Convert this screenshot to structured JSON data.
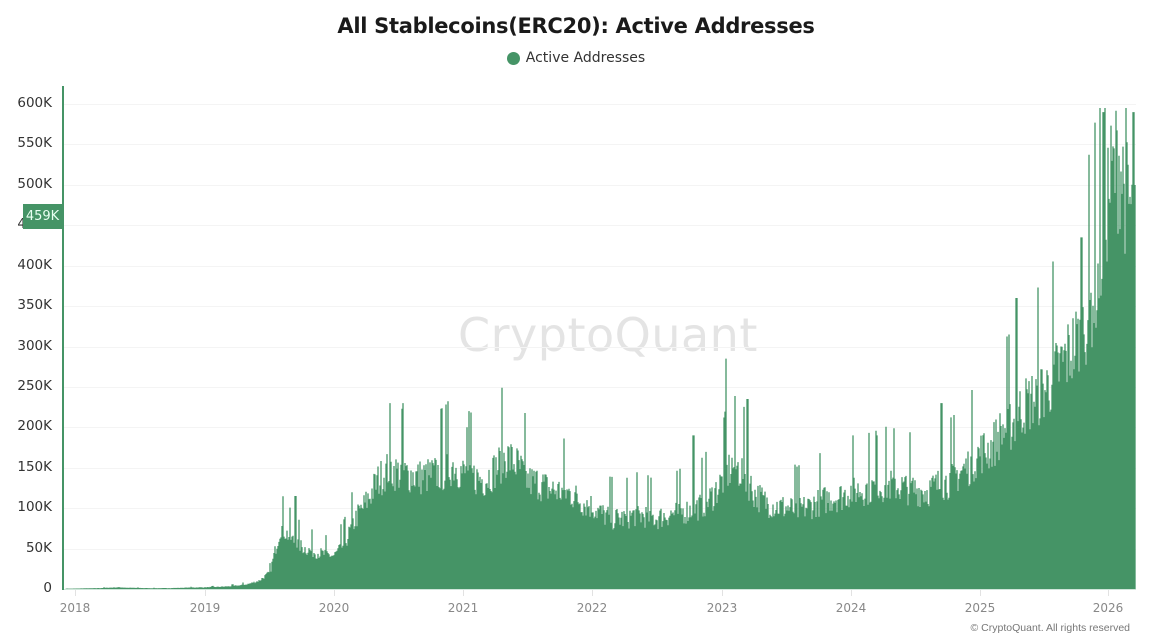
{
  "title": "All Stablecoins(ERC20): Active Addresses",
  "legend": {
    "label": "Active Addresses",
    "color": "#459466"
  },
  "colors": {
    "bar": "#459466",
    "axis": "#459466",
    "badge": "#459466"
  },
  "current_value_badge": "459K",
  "watermark": "CryptoQuant",
  "copyright": "© CryptoQuant. All rights reserved",
  "y_ticks": [
    "0",
    "50K",
    "100K",
    "150K",
    "200K",
    "250K",
    "300K",
    "350K",
    "400K",
    "450K",
    "500K",
    "550K",
    "600K"
  ],
  "x_ticks": [
    "2018",
    "2019",
    "2020",
    "2021",
    "2022",
    "2023",
    "2024",
    "2025",
    "2026"
  ],
  "chart_data": {
    "type": "bar",
    "title": "All Stablecoins(ERC20): Active Addresses",
    "xlabel": "",
    "ylabel": "",
    "ylim": [
      0,
      600000
    ],
    "legend": [
      "Active Addresses"
    ],
    "legend_position": "top-center",
    "grid": true,
    "x_range": [
      "2018-01",
      "2026-03"
    ],
    "current_value": 459000,
    "series": [
      {
        "name": "Active Addresses",
        "granularity": "approx. semi-monthly samples (daily bars in original)",
        "x": [
          "2018-01",
          "2018-02",
          "2018-03",
          "2018-04",
          "2018-05",
          "2018-06",
          "2018-07",
          "2018-08",
          "2018-09",
          "2018-10",
          "2018-11",
          "2018-12",
          "2019-01",
          "2019-02",
          "2019-03",
          "2019-04",
          "2019-05",
          "2019-06",
          "2019-07",
          "2019-08",
          "2019-09",
          "2019-10",
          "2019-11",
          "2019-12",
          "2020-01",
          "2020-02",
          "2020-03",
          "2020-04",
          "2020-05",
          "2020-06",
          "2020-07",
          "2020-08",
          "2020-09",
          "2020-10",
          "2020-11",
          "2020-12",
          "2021-01",
          "2021-02",
          "2021-03",
          "2021-04",
          "2021-05",
          "2021-06",
          "2021-07",
          "2021-08",
          "2021-09",
          "2021-10",
          "2021-11",
          "2021-12",
          "2022-01",
          "2022-02",
          "2022-03",
          "2022-04",
          "2022-05",
          "2022-06",
          "2022-07",
          "2022-08",
          "2022-09",
          "2022-10",
          "2022-11",
          "2022-12",
          "2023-01",
          "2023-02",
          "2023-03",
          "2023-04",
          "2023-05",
          "2023-06",
          "2023-07",
          "2023-08",
          "2023-09",
          "2023-10",
          "2023-11",
          "2023-12",
          "2024-01",
          "2024-02",
          "2024-03",
          "2024-04",
          "2024-05",
          "2024-06",
          "2024-07",
          "2024-08",
          "2024-09",
          "2024-10",
          "2024-11",
          "2024-12",
          "2025-01",
          "2025-02",
          "2025-03",
          "2025-04",
          "2025-05",
          "2025-06",
          "2025-07",
          "2025-08",
          "2025-09",
          "2025-10",
          "2025-11",
          "2025-12",
          "2026-01",
          "2026-02",
          "2026-03"
        ],
        "values": [
          500,
          800,
          1000,
          1500,
          2000,
          1500,
          1200,
          1000,
          1000,
          1200,
          1500,
          1800,
          2000,
          2500,
          3000,
          4000,
          6000,
          10000,
          20000,
          75000,
          60000,
          50000,
          45000,
          42000,
          40000,
          55000,
          85000,
          105000,
          130000,
          145000,
          140000,
          138000,
          135000,
          138000,
          140000,
          150000,
          140000,
          135000,
          132000,
          145000,
          160000,
          150000,
          130000,
          128000,
          120000,
          118000,
          115000,
          105000,
          100000,
          90000,
          85000,
          85000,
          90000,
          88000,
          85000,
          90000,
          92000,
          95000,
          100000,
          110000,
          130000,
          150000,
          140000,
          115000,
          105000,
          100000,
          98000,
          95000,
          100000,
          105000,
          110000,
          112000,
          118000,
          120000,
          122000,
          125000,
          125000,
          122000,
          120000,
          118000,
          125000,
          130000,
          140000,
          150000,
          165000,
          170000,
          190000,
          200000,
          220000,
          230000,
          240000,
          260000,
          280000,
          300000,
          330000,
          380000,
          480000,
          520000,
          459000
        ],
        "notable_peaks": [
          {
            "x": "2019-09",
            "value": 115000
          },
          {
            "x": "2020-07",
            "value": 230000
          },
          {
            "x": "2021-01",
            "value": 200000
          },
          {
            "x": "2022-10",
            "value": 190000
          },
          {
            "x": "2023-01",
            "value": 285000
          },
          {
            "x": "2023-03",
            "value": 235000
          },
          {
            "x": "2024-03",
            "value": 190000
          },
          {
            "x": "2024-09",
            "value": 230000
          },
          {
            "x": "2025-04",
            "value": 360000
          },
          {
            "x": "2025-10",
            "value": 435000
          },
          {
            "x": "2025-12",
            "value": 590000
          },
          {
            "x": "2026-03",
            "value": 590000
          }
        ]
      }
    ]
  }
}
